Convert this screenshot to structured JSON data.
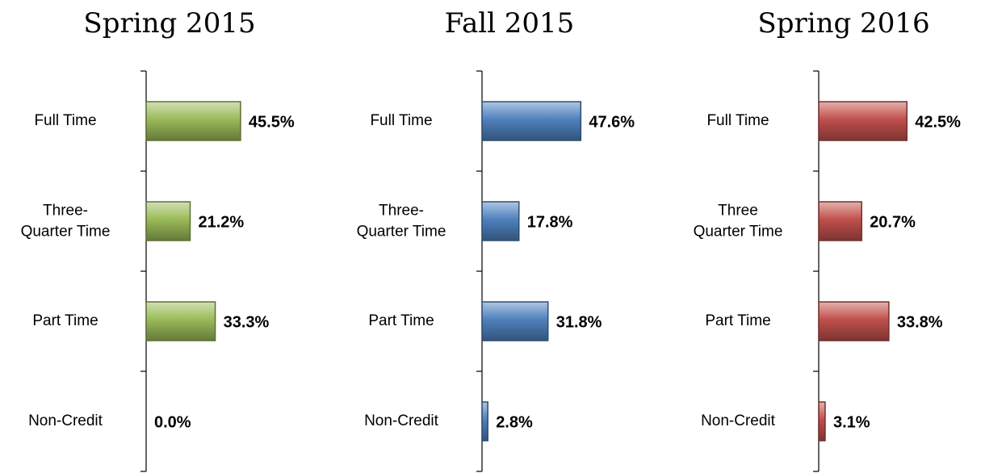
{
  "chart_data": [
    {
      "type": "bar",
      "title": "Spring 2015",
      "categories": [
        "Full Time",
        "Three-\nQuarter Time",
        "Part Time",
        "Non-Credit"
      ],
      "values": [
        45.5,
        21.2,
        33.3,
        0.0
      ],
      "value_labels": [
        "45.5%",
        "21.2%",
        "33.3%",
        "0.0%"
      ],
      "color": "#9bbb59",
      "xlim": [
        0,
        100
      ]
    },
    {
      "type": "bar",
      "title": "Fall 2015",
      "categories": [
        "Full Time",
        "Three-\nQuarter Time",
        "Part Time",
        "Non-Credit"
      ],
      "values": [
        47.6,
        17.8,
        31.8,
        2.8
      ],
      "value_labels": [
        "47.6%",
        "17.8%",
        "31.8%",
        "2.8%"
      ],
      "color": "#4f81bd",
      "xlim": [
        0,
        100
      ]
    },
    {
      "type": "bar",
      "title": "Spring 2016",
      "categories": [
        "Full Time",
        "Three\nQuarter Time",
        "Part Time",
        "Non-Credit"
      ],
      "values": [
        42.5,
        20.7,
        33.8,
        3.1
      ],
      "value_labels": [
        "42.5%",
        "20.7%",
        "33.8%",
        "3.1%"
      ],
      "color": "#c0504d",
      "xlim": [
        0,
        100
      ]
    }
  ]
}
